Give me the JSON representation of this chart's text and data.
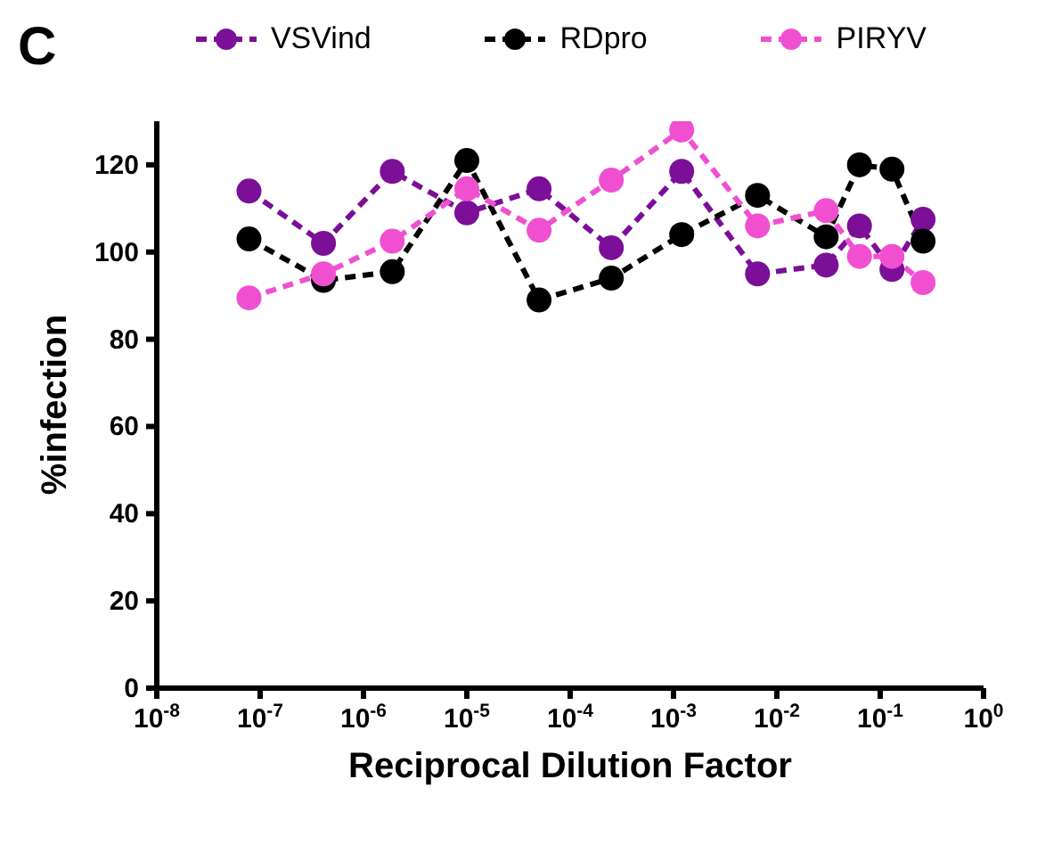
{
  "chart_data": {
    "type": "line",
    "annotations": [
      "C"
    ],
    "xlabel": "Reciprocal Dilution Factor",
    "ylabel": "%infection",
    "x": [
      7.8e-08,
      4.1e-07,
      1.9e-06,
      1e-05,
      5e-05,
      0.00025,
      0.0012,
      0.0065,
      0.03,
      0.063,
      0.13,
      0.26
    ],
    "series": [
      {
        "name": "VSVind",
        "color": "#7b0f97",
        "values": [
          114,
          102,
          118.5,
          109,
          114.5,
          101,
          118.5,
          95,
          97,
          106,
          96,
          107.5
        ]
      },
      {
        "name": "RDpro",
        "color": "#000000",
        "values": [
          103,
          93.5,
          95.5,
          121,
          89,
          94,
          104,
          113,
          103.5,
          120,
          119,
          102.5
        ]
      },
      {
        "name": "PIRYV",
        "color": "#f050d0",
        "values": [
          89.5,
          95,
          102.5,
          114.5,
          105,
          116.5,
          128,
          106,
          109.5,
          99,
          99,
          93
        ]
      }
    ],
    "log": "x",
    "xlim": [
      1e-08,
      1
    ],
    "xticks": [
      {
        "value": 1e-08,
        "label": "10$^{-8}$"
      },
      {
        "value": 1e-07,
        "label": "10$^{-7}$"
      },
      {
        "value": 1e-06,
        "label": "10$^{-6}$"
      },
      {
        "value": 1e-05,
        "label": "10$^{-5}$"
      },
      {
        "value": 0.0001,
        "label": "10$^{-4}$"
      },
      {
        "value": 0.001,
        "label": "10$^{-3}$"
      },
      {
        "value": 0.01,
        "label": "10$^{-2}$"
      },
      {
        "value": 0.1,
        "label": "10$^{-1}$"
      },
      {
        "value": 1,
        "label": "10$^{0}$"
      }
    ],
    "ylim": [
      0,
      130
    ],
    "yticks": [
      0,
      20,
      40,
      60,
      80,
      100,
      120
    ],
    "grid": false,
    "legend": "top",
    "marker": "circle",
    "line_style": "dashed"
  }
}
